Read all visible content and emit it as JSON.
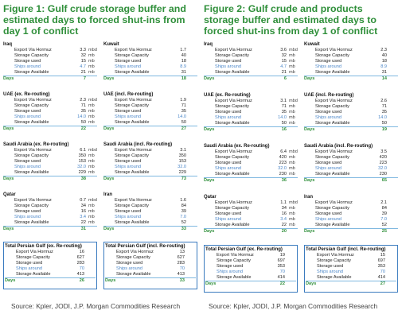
{
  "fig1": {
    "title": "Figure 1: Gulf crude storage buffer and estimated days to forced shut-ins from day 1 of conflict",
    "source": "Source: Kpler, JODI, J.P. Morgan Commodities Research",
    "regions": [
      {
        "name": "Iraq",
        "rows": [
          {
            "label": "Export Via Hormuz",
            "value": "3.3",
            "unit": "mbd"
          },
          {
            "label": "Storage Capacity",
            "value": "32",
            "unit": "mb"
          },
          {
            "label": "Storage used",
            "value": "15",
            "unit": "mb"
          },
          {
            "label": "Ships around",
            "value": "4.7",
            "unit": "mb"
          },
          {
            "label": "Storage Available",
            "value": "21",
            "unit": "mb"
          }
        ],
        "days": "7"
      },
      {
        "name": "Kuwait",
        "rows": [
          {
            "label": "Export Via Hormuz",
            "value": "1.7",
            "unit": ""
          },
          {
            "label": "Storage Capacity",
            "value": "40",
            "unit": ""
          },
          {
            "label": "Storage used",
            "value": "18",
            "unit": ""
          },
          {
            "label": "Ships around",
            "value": "8.9",
            "unit": ""
          },
          {
            "label": "Storage Available",
            "value": "31",
            "unit": ""
          }
        ],
        "days": "18"
      },
      {
        "name": "UAE (ex. Re-routing)",
        "rows": [
          {
            "label": "Export Via Hormuz",
            "value": "2.3",
            "unit": "mbd"
          },
          {
            "label": "Storage Capacity",
            "value": "71",
            "unit": "mb"
          },
          {
            "label": "Storage used",
            "value": "35",
            "unit": "mb"
          },
          {
            "label": "Ships around",
            "value": "14.0",
            "unit": "mb"
          },
          {
            "label": "Storage Available",
            "value": "50",
            "unit": "mb"
          }
        ],
        "days": "22"
      },
      {
        "name": "UAE (incl. Re-routing)",
        "rows": [
          {
            "label": "Export Via Hormuz",
            "value": "1.9",
            "unit": ""
          },
          {
            "label": "Storage Capacity",
            "value": "71",
            "unit": ""
          },
          {
            "label": "Storage used",
            "value": "35",
            "unit": ""
          },
          {
            "label": "Ships around",
            "value": "14.0",
            "unit": ""
          },
          {
            "label": "Storage Available",
            "value": "50",
            "unit": ""
          }
        ],
        "days": "27"
      },
      {
        "name": "Saudi Arabia (ex. Re-routing)",
        "rows": [
          {
            "label": "Export Via Hormuz",
            "value": "6.1",
            "unit": "mbd"
          },
          {
            "label": "Storage Capacity",
            "value": "350",
            "unit": "mb"
          },
          {
            "label": "Storage used",
            "value": "153",
            "unit": "mb"
          },
          {
            "label": "Ships around",
            "value": "32.0",
            "unit": "mb"
          },
          {
            "label": "Storage Available",
            "value": "229",
            "unit": "mb"
          }
        ],
        "days": "38"
      },
      {
        "name": "Saudi Arabia (incl. Re-routing)",
        "rows": [
          {
            "label": "Export Via Hormuz",
            "value": "3.1",
            "unit": ""
          },
          {
            "label": "Storage Capacity",
            "value": "350",
            "unit": ""
          },
          {
            "label": "Storage used",
            "value": "153",
            "unit": ""
          },
          {
            "label": "Ships around",
            "value": "32.0",
            "unit": ""
          },
          {
            "label": "Storage Available",
            "value": "229",
            "unit": ""
          }
        ],
        "days": "73"
      },
      {
        "name": "Qatar",
        "rows": [
          {
            "label": "Export Via Hormuz",
            "value": "0.7",
            "unit": "mbd"
          },
          {
            "label": "Storage Capacity",
            "value": "34",
            "unit": "mb"
          },
          {
            "label": "Storage used",
            "value": "16",
            "unit": "mb"
          },
          {
            "label": "Ships around",
            "value": "3.4",
            "unit": "mb"
          },
          {
            "label": "Storage Available",
            "value": "22",
            "unit": "mb"
          }
        ],
        "days": "31"
      },
      {
        "name": "Iran",
        "rows": [
          {
            "label": "Export Via Hormuz",
            "value": "1.6",
            "unit": ""
          },
          {
            "label": "Storage Capacity",
            "value": "84",
            "unit": ""
          },
          {
            "label": "Storage used",
            "value": "39",
            "unit": ""
          },
          {
            "label": "Ships around",
            "value": "7.0",
            "unit": ""
          },
          {
            "label": "Storage Available",
            "value": "52",
            "unit": ""
          }
        ],
        "days": "33"
      },
      {
        "name": "Total Persian Gulf (ex. Re-routing)",
        "total": true,
        "rows": [
          {
            "label": "Export Via Hormuz",
            "value": "16",
            "unit": ""
          },
          {
            "label": "Storage Capacity",
            "value": "627",
            "unit": ""
          },
          {
            "label": "Storage used",
            "value": "283",
            "unit": ""
          },
          {
            "label": "Ships around",
            "value": "70",
            "unit": ""
          },
          {
            "label": "Storage Available",
            "value": "413",
            "unit": ""
          }
        ],
        "days": "26"
      },
      {
        "name": "Total Persian Gulf (incl. Re-routing)",
        "total": true,
        "rows": [
          {
            "label": "Export Via Hormuz",
            "value": "13",
            "unit": ""
          },
          {
            "label": "Storage Capacity",
            "value": "627",
            "unit": ""
          },
          {
            "label": "Storage used",
            "value": "283",
            "unit": ""
          },
          {
            "label": "Ships around",
            "value": "70",
            "unit": ""
          },
          {
            "label": "Storage Available",
            "value": "413",
            "unit": ""
          }
        ],
        "days": "33"
      }
    ]
  },
  "fig2": {
    "title": "Figure 2: Gulf crude and products storage buffer and estimated days to forced shut-ins from day 1 of conflict",
    "source": "Source: Kpler, JODI, J.P. Morgan Commodities Research",
    "regions": [
      {
        "name": "Iraq",
        "rows": [
          {
            "label": "Export Via Hormuz",
            "value": "3.6",
            "unit": "mbd"
          },
          {
            "label": "Storage Capacity",
            "value": "32",
            "unit": "mb"
          },
          {
            "label": "Storage used",
            "value": "15",
            "unit": "mb"
          },
          {
            "label": "Ships around",
            "value": "4.7",
            "unit": "mb"
          },
          {
            "label": "Storage Available",
            "value": "21",
            "unit": "mb"
          }
        ],
        "days": "6"
      },
      {
        "name": "Kuwait",
        "rows": [
          {
            "label": "Export Via Hormuz",
            "value": "2.3",
            "unit": ""
          },
          {
            "label": "Storage Capacity",
            "value": "40",
            "unit": ""
          },
          {
            "label": "Storage used",
            "value": "18",
            "unit": ""
          },
          {
            "label": "Ships around",
            "value": "8.9",
            "unit": ""
          },
          {
            "label": "Storage Available",
            "value": "31",
            "unit": ""
          }
        ],
        "days": "14"
      },
      {
        "name": "UAE (ex. Re-routing)",
        "rows": [
          {
            "label": "Export Via Hormuz",
            "value": "3.1",
            "unit": "mbd"
          },
          {
            "label": "Storage Capacity",
            "value": "71",
            "unit": "mb"
          },
          {
            "label": "Storage used",
            "value": "35",
            "unit": "mb"
          },
          {
            "label": "Ships around",
            "value": "14.0",
            "unit": "mb"
          },
          {
            "label": "Storage Available",
            "value": "50",
            "unit": "mb"
          }
        ],
        "days": "16"
      },
      {
        "name": "UAE (incl. Re-routing)",
        "rows": [
          {
            "label": "Export Via Hormuz",
            "value": "2.6",
            "unit": ""
          },
          {
            "label": "Storage Capacity",
            "value": "71",
            "unit": ""
          },
          {
            "label": "Storage used",
            "value": "35",
            "unit": ""
          },
          {
            "label": "Ships around",
            "value": "14.0",
            "unit": ""
          },
          {
            "label": "Storage Available",
            "value": "50",
            "unit": ""
          }
        ],
        "days": "19"
      },
      {
        "name": "Saudi Arabia (ex. Re-routing)",
        "rows": [
          {
            "label": "Export Via Hormuz",
            "value": "6.4",
            "unit": "mbd"
          },
          {
            "label": "Storage Capacity",
            "value": "420",
            "unit": "mb"
          },
          {
            "label": "Storage used",
            "value": "223",
            "unit": "mb"
          },
          {
            "label": "Ships around",
            "value": "32.0",
            "unit": "mb"
          },
          {
            "label": "Storage Available",
            "value": "230",
            "unit": "mb"
          }
        ],
        "days": "36"
      },
      {
        "name": "Saudi Arabia (incl. Re-routing)",
        "rows": [
          {
            "label": "Export Via Hormuz",
            "value": "3.5",
            "unit": ""
          },
          {
            "label": "Storage Capacity",
            "value": "420",
            "unit": ""
          },
          {
            "label": "Storage used",
            "value": "223",
            "unit": ""
          },
          {
            "label": "Ships around",
            "value": "32.0",
            "unit": ""
          },
          {
            "label": "Storage Available",
            "value": "230",
            "unit": ""
          }
        ],
        "days": "65"
      },
      {
        "name": "Qatar",
        "rows": [
          {
            "label": "Export Via Hormuz",
            "value": "1.1",
            "unit": "mbd"
          },
          {
            "label": "Storage Capacity",
            "value": "34",
            "unit": "mb"
          },
          {
            "label": "Storage used",
            "value": "16",
            "unit": "mb"
          },
          {
            "label": "Ships around",
            "value": "3.4",
            "unit": "mb"
          },
          {
            "label": "Storage Available",
            "value": "22",
            "unit": "mb"
          }
        ],
        "days": "20"
      },
      {
        "name": "Iran",
        "rows": [
          {
            "label": "Export Via Hormuz",
            "value": "2.1",
            "unit": ""
          },
          {
            "label": "Storage Capacity",
            "value": "84",
            "unit": ""
          },
          {
            "label": "Storage used",
            "value": "39",
            "unit": ""
          },
          {
            "label": "Ships around",
            "value": "7.0",
            "unit": ""
          },
          {
            "label": "Storage Available",
            "value": "52",
            "unit": ""
          }
        ],
        "days": "25"
      },
      {
        "name": "Total Persian Gulf (ex. Re-routing)",
        "total": true,
        "rows": [
          {
            "label": "Export Via Hormuz",
            "value": "19",
            "unit": ""
          },
          {
            "label": "Storage Capacity",
            "value": "697",
            "unit": ""
          },
          {
            "label": "Storage used",
            "value": "353",
            "unit": ""
          },
          {
            "label": "Ships around",
            "value": "70",
            "unit": ""
          },
          {
            "label": "Storage Available",
            "value": "414",
            "unit": ""
          }
        ],
        "days": "22"
      },
      {
        "name": "Total Persian Gulf (incl. Re-routing)",
        "total": true,
        "rows": [
          {
            "label": "Export Via Hormuz",
            "value": "15",
            "unit": ""
          },
          {
            "label": "Storage Capacity",
            "value": "697",
            "unit": ""
          },
          {
            "label": "Storage used",
            "value": "353",
            "unit": ""
          },
          {
            "label": "Ships around",
            "value": "70",
            "unit": ""
          },
          {
            "label": "Storage Available",
            "value": "414",
            "unit": ""
          }
        ],
        "days": "27"
      }
    ]
  },
  "days_label": "Days"
}
